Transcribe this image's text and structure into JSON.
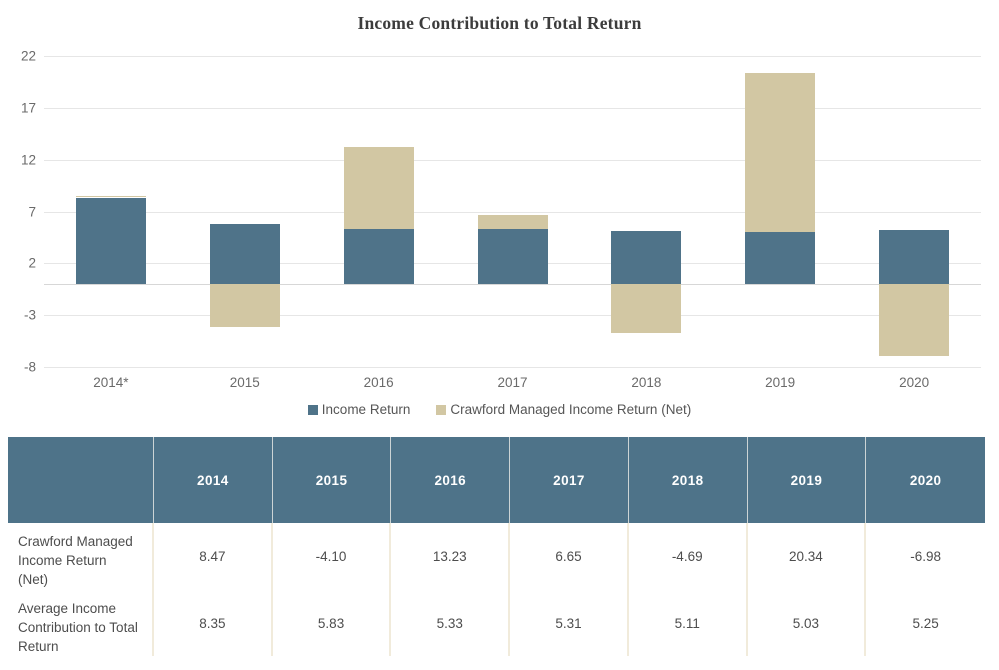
{
  "chart_data": {
    "type": "bar",
    "stacked": true,
    "title": "Income Contribution to Total Return",
    "categories": [
      "2014*",
      "2015",
      "2016",
      "2017",
      "2018",
      "2019",
      "2020"
    ],
    "series": [
      {
        "name": "Income Return",
        "color": "#4F7389",
        "values": [
          8.35,
          5.83,
          5.33,
          5.31,
          5.11,
          5.03,
          5.25
        ]
      },
      {
        "name": "Crawford Managed Income Return (Net)",
        "color": "#D2C7A3",
        "values": [
          8.47,
          -4.1,
          13.23,
          6.65,
          -4.69,
          20.34,
          -6.98
        ]
      }
    ],
    "xlabel": "",
    "ylabel": "",
    "ylim": [
      -8,
      22
    ],
    "y_ticks": [
      22,
      17,
      12,
      7,
      2,
      -3,
      -8
    ],
    "grid": true,
    "legend_position": "bottom"
  },
  "table": {
    "header": [
      "",
      "2014",
      "2015",
      "2016",
      "2017",
      "2018",
      "2019",
      "2020"
    ],
    "rows": [
      {
        "label": "Crawford Managed\nIncome Return\n(Net)",
        "values": [
          "8.47",
          "-4.10",
          "13.23",
          "6.65",
          "-4.69",
          "20.34",
          "-6.98"
        ]
      },
      {
        "label": "Average Income\nContribution to Total\nReturn",
        "values": [
          "8.35",
          "5.83",
          "5.33",
          "5.31",
          "5.11",
          "5.03",
          "5.25"
        ]
      }
    ]
  },
  "colors": {
    "accent_blue": "#4F7389",
    "accent_tan": "#D2C7A3",
    "gridline": "#E6E6E6",
    "table_header_bg": "#4E7389",
    "body_divider": "#F1EBDB"
  }
}
